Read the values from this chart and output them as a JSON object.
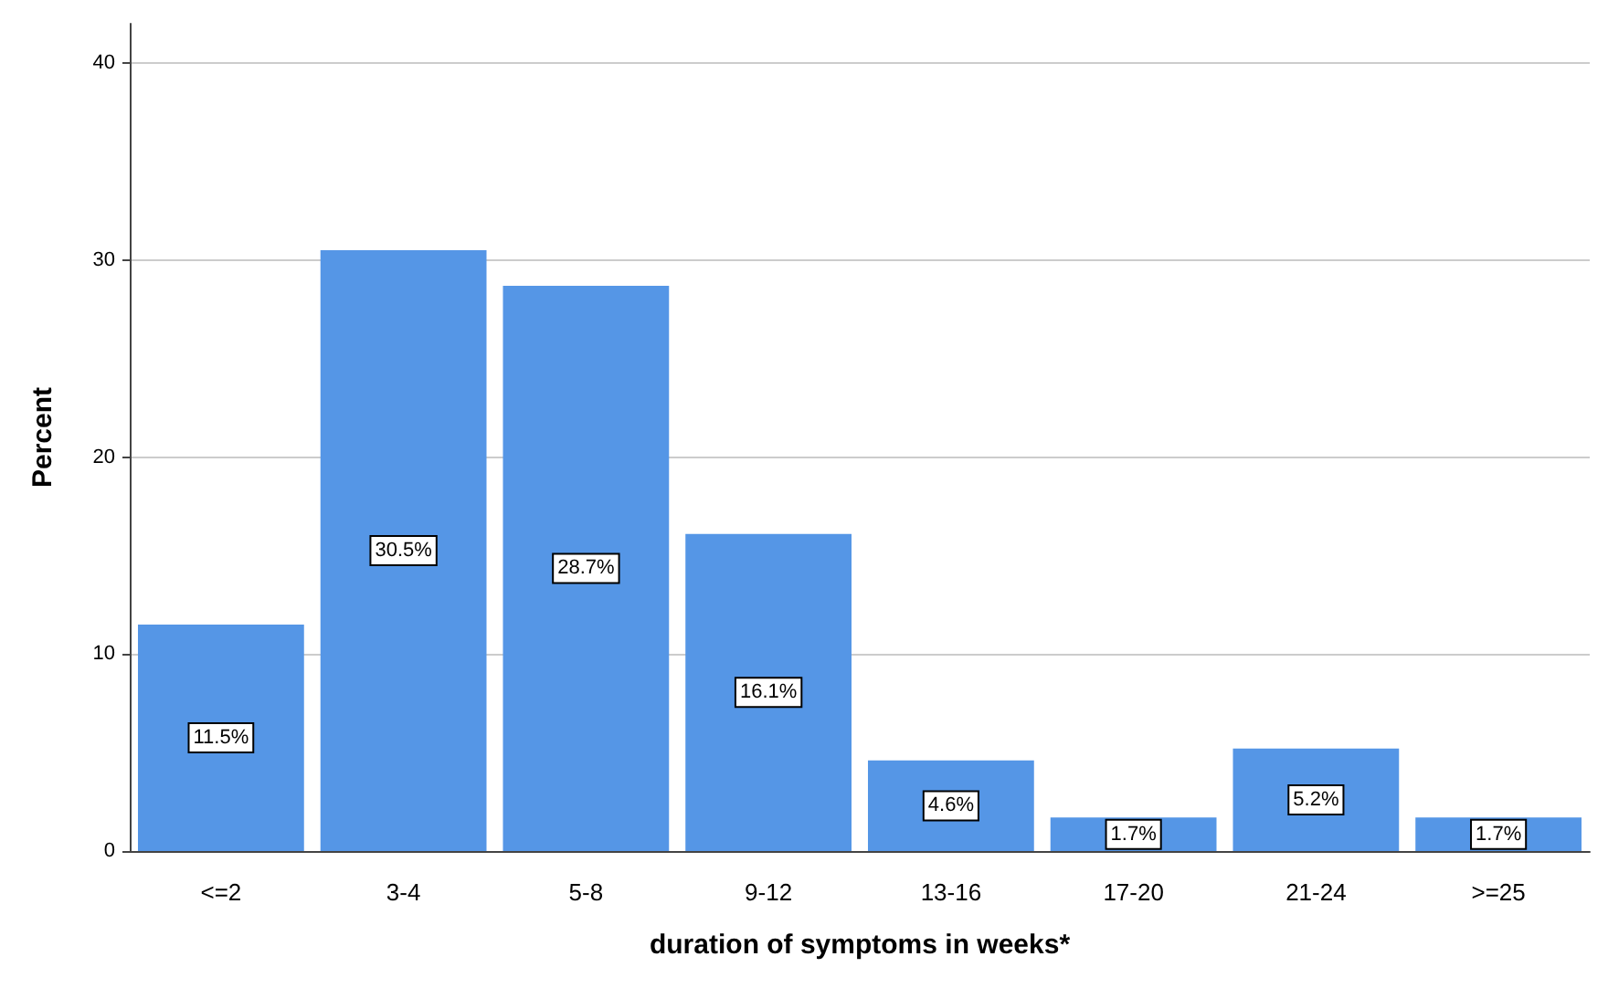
{
  "chart_data": {
    "type": "bar",
    "xlabel": "duration of symptoms in weeks*",
    "ylabel": "Percent",
    "categories": [
      "<=2",
      "3-4",
      "5-8",
      "9-12",
      "13-16",
      "17-20",
      "21-24",
      ">=25"
    ],
    "values": [
      11.5,
      30.5,
      28.7,
      16.1,
      4.6,
      1.7,
      5.2,
      1.7
    ],
    "value_labels": [
      "11.5%",
      "30.5%",
      "28.7%",
      "16.1%",
      "4.6%",
      "1.7%",
      "5.2%",
      "1.7%"
    ],
    "color": "#5596e6",
    "ylim": [
      0,
      42
    ],
    "yticks": [
      0,
      10,
      20,
      30,
      40
    ],
    "grid": "y"
  }
}
